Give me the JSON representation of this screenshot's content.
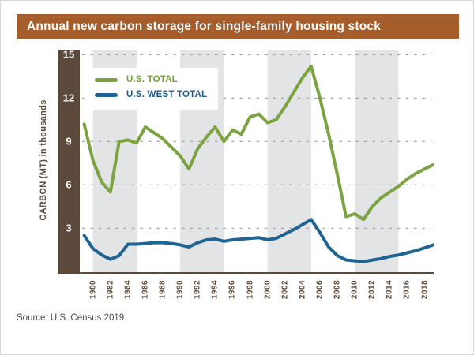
{
  "title_bar": {
    "text": "Annual new carbon storage for single-family housing stock",
    "bg_color": "#a55d2b",
    "text_color": "#ffffff"
  },
  "source_note": "Source: U.S. Census 2019",
  "axis_bar_color": "#5b4a3b",
  "legend": {
    "items": [
      {
        "label": "U.S. TOTAL",
        "color": "#7ba440",
        "text_color": "#76a13c"
      },
      {
        "label": "U.S. WEST TOTAL",
        "color": "#1f6492",
        "text_color": "#1b5c8a"
      }
    ]
  },
  "chart_data": {
    "type": "line",
    "title": "Annual new carbon storage for single-family housing stock",
    "xlabel": "",
    "ylabel": "CARBON (MT) in thousands",
    "x": [
      1979,
      1980,
      1981,
      1982,
      1983,
      1984,
      1985,
      1986,
      1987,
      1988,
      1989,
      1990,
      1991,
      1992,
      1993,
      1994,
      1995,
      1996,
      1997,
      1998,
      1999,
      2000,
      2001,
      2002,
      2003,
      2004,
      2005,
      2006,
      2007,
      2008,
      2009,
      2010,
      2011,
      2012,
      2013,
      2014,
      2015,
      2016,
      2017,
      2018,
      2019
    ],
    "series": [
      {
        "name": "U.S. TOTAL",
        "color": "#7ba440",
        "values": [
          10.2,
          7.7,
          6.2,
          5.5,
          9.0,
          9.1,
          8.9,
          10.0,
          9.6,
          9.2,
          8.6,
          8.0,
          7.1,
          8.5,
          9.3,
          10.0,
          9.0,
          9.8,
          9.5,
          10.7,
          10.9,
          10.3,
          10.5,
          11.4,
          12.4,
          13.4,
          14.2,
          12.0,
          9.5,
          6.7,
          3.8,
          4.0,
          3.6,
          4.5,
          5.1,
          5.5,
          5.9,
          6.4,
          6.8,
          7.1,
          7.4
        ]
      },
      {
        "name": "U.S. WEST TOTAL",
        "color": "#1f6492",
        "values": [
          2.5,
          1.6,
          1.15,
          0.85,
          1.1,
          1.9,
          1.9,
          1.95,
          2.0,
          2.0,
          1.95,
          1.85,
          1.7,
          2.0,
          2.2,
          2.25,
          2.1,
          2.2,
          2.25,
          2.3,
          2.35,
          2.2,
          2.3,
          2.6,
          2.9,
          3.25,
          3.6,
          2.7,
          1.7,
          1.1,
          0.8,
          0.75,
          0.7,
          0.8,
          0.9,
          1.05,
          1.15,
          1.3,
          1.45,
          1.65,
          1.85
        ]
      }
    ],
    "yticks": [
      15,
      12,
      9,
      6,
      3
    ],
    "xticks": [
      1980,
      1982,
      1984,
      1986,
      1988,
      1990,
      1992,
      1994,
      1996,
      1998,
      2000,
      2002,
      2004,
      2006,
      2008,
      2010,
      2012,
      2014,
      2016,
      2018
    ],
    "ylim": [
      0,
      15.4
    ],
    "xlim": [
      1978.5,
      2019.5
    ],
    "grid": "horizontal dashed at each ytick",
    "grid_color": "#a0a0a0",
    "legend_position": "inside top-left",
    "shaded_bands": [
      [
        1980,
        1985
      ],
      [
        1990,
        1995
      ],
      [
        2000,
        2005
      ],
      [
        2010,
        2015
      ]
    ],
    "band_color": "#e3e4e6"
  }
}
